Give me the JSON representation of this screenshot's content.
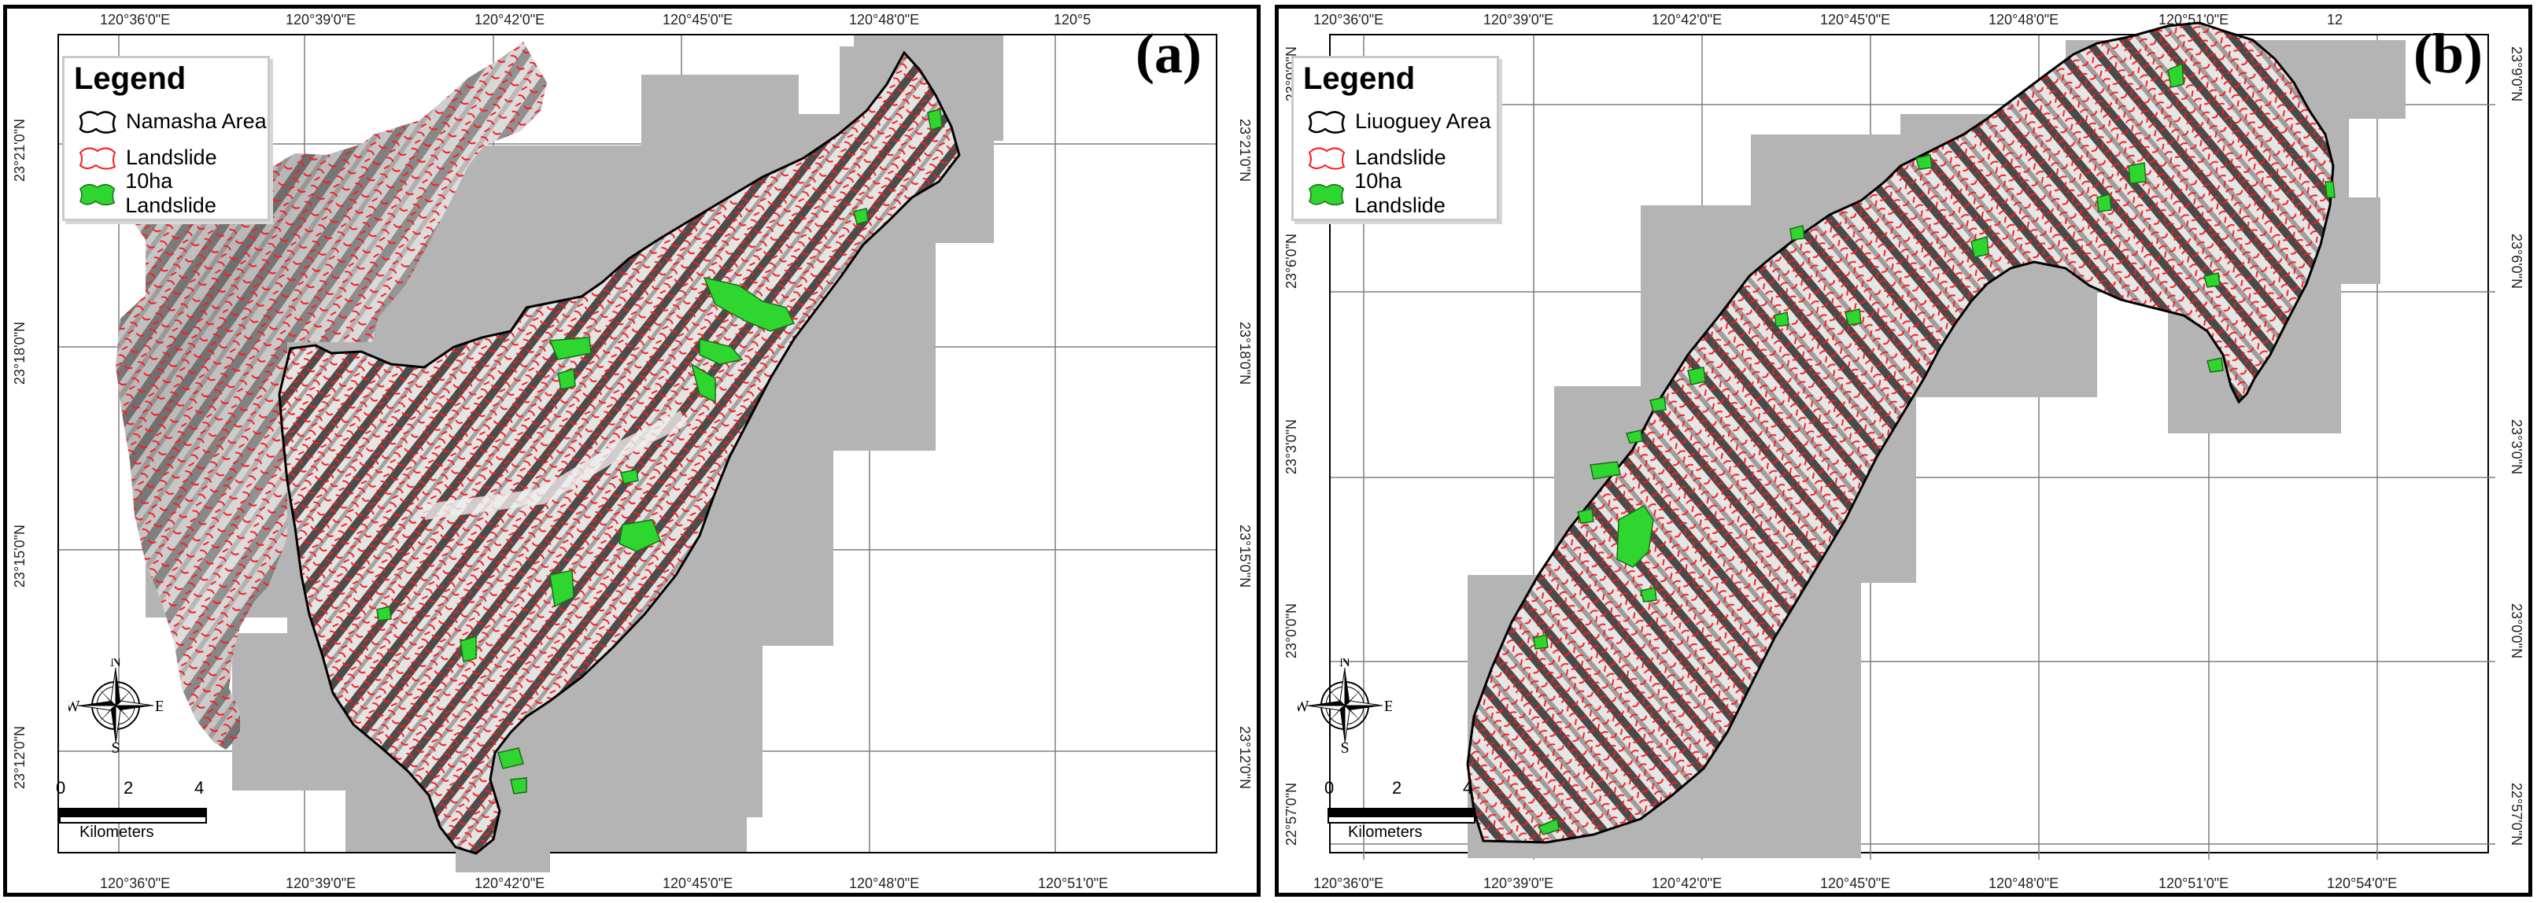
{
  "panels": [
    {
      "id": "a",
      "label": "(a)",
      "legend": {
        "title": "Legend",
        "items": [
          "Namasha Area",
          "Landslide",
          "10ha Landslide"
        ]
      },
      "top_ticks": [
        "120°36'0\"E",
        "120°39'0\"E",
        "120°42'0\"E",
        "120°45'0\"E",
        "120°48'0\"E",
        "120°5"
      ],
      "bottom_ticks": [
        "120°36'0\"E",
        "120°39'0\"E",
        "120°42'0\"E",
        "120°45'0\"E",
        "120°48'0\"E",
        "120°51'0\"E"
      ],
      "left_ticks": [
        "23°21'0\"N",
        "23°18'0\"N",
        "23°15'0\"N",
        "23°12'0\"N"
      ],
      "right_ticks": [
        "23°21'0\"N",
        "23°18'0\"N",
        "23°15'0\"N",
        "23°12'0\"N"
      ],
      "scale": {
        "ticks": [
          "0",
          "2",
          "4"
        ],
        "unit": "Kilometers"
      },
      "compass": {
        "n": "N",
        "s": "S",
        "e": "E",
        "w": "W"
      }
    },
    {
      "id": "b",
      "label": "(b)",
      "legend": {
        "title": "Legend",
        "items": [
          "Liuoguey Area",
          "Landslide",
          "10ha Landslide"
        ]
      },
      "top_ticks": [
        "120°36'0\"E",
        "120°39'0\"E",
        "120°42'0\"E",
        "120°45'0\"E",
        "120°48'0\"E",
        "120°51'0\"E",
        "12"
      ],
      "bottom_ticks": [
        "120°36'0\"E",
        "120°39'0\"E",
        "120°42'0\"E",
        "120°45'0\"E",
        "120°48'0\"E",
        "120°51'0\"E",
        "120°54'0\"E"
      ],
      "left_ticks": [
        "23°9'0\"N",
        "23°6'0\"N",
        "23°3'0\"N",
        "23°0'0\"N",
        "22°57'0\"N"
      ],
      "right_ticks": [
        "23°9'0\"N",
        "23°6'0\"N",
        "23°3'0\"N",
        "23°0'0\"N",
        "22°57'0\"N"
      ],
      "scale": {
        "ticks": [
          "0",
          "2",
          "4"
        ],
        "unit": "Kilometers"
      },
      "compass": {
        "n": "N",
        "s": "S",
        "e": "E",
        "w": "W"
      }
    }
  ],
  "colors": {
    "tile_gray": "#b4b4b4",
    "terrain_light": "#e6e6e6",
    "terrain_dark": "#5a5a5a",
    "landslide": "#ff1a1a",
    "big_landslide": "#2fd62f",
    "boundary": "#000000",
    "grid": "#7f7f7f"
  },
  "icons": [
    "compass-rose-icon",
    "area-outline-icon",
    "landslide-outline-icon",
    "large-landslide-fill-icon"
  ]
}
